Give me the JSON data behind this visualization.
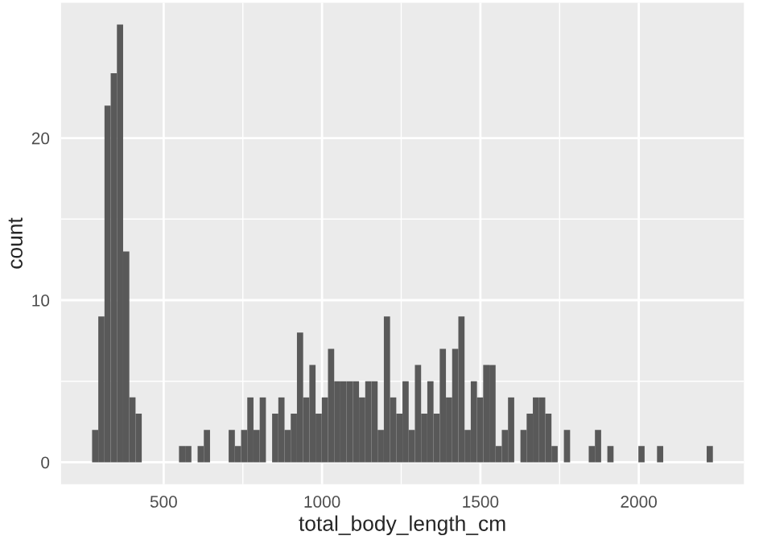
{
  "chart_data": {
    "type": "histogram",
    "xlabel": "total_body_length_cm",
    "ylabel": "count",
    "color": "#595959",
    "bins": [
      274,
      293.6,
      313.2,
      332.8,
      352.4,
      372,
      391.6,
      411.2,
      430.8,
      450.4,
      470,
      489.6,
      509.2,
      528.8,
      548.4,
      568,
      587.6,
      607.2,
      626.8,
      646.4,
      666,
      685.6,
      705.2,
      724.8,
      744.4,
      764,
      783.6,
      803.2,
      822.8,
      842.4,
      862,
      881.6,
      901.2,
      920.8,
      940.4,
      960,
      979.6,
      999.2,
      1018.8,
      1038.4,
      1058,
      1077.6,
      1097.2,
      1116.8,
      1136.4,
      1156,
      1175.6,
      1195.2,
      1214.8,
      1234.4,
      1254,
      1273.6,
      1293.2,
      1312.8,
      1332.4,
      1352,
      1371.6,
      1391.2,
      1410.8,
      1430.4,
      1450,
      1469.6,
      1489.2,
      1508.8,
      1528.4,
      1548,
      1567.6,
      1587.2,
      1606.8,
      1626.4,
      1646,
      1665.6,
      1685.2,
      1704.8,
      1724.4,
      1744,
      1763.6,
      1783.2,
      1802.8,
      1822.4,
      1842,
      1861.6,
      1881.2,
      1900.8,
      1920.4,
      1940,
      1959.6,
      1979.2,
      1998.8,
      2018.4,
      2038,
      2057.6,
      2077.2,
      2096.8,
      2116.4,
      2136,
      2155.6,
      2175.2,
      2194.8,
      2214.4,
      2234
    ],
    "values": [
      2,
      9,
      22,
      24,
      27,
      13,
      4,
      3,
      0,
      0,
      0,
      0,
      0,
      0,
      1,
      1,
      0,
      1,
      2,
      0,
      0,
      0,
      2,
      1,
      2,
      4,
      2,
      4,
      0,
      3,
      4,
      2,
      3,
      8,
      4,
      6,
      3,
      4,
      7,
      5,
      5,
      5,
      5,
      4,
      5,
      5,
      2,
      9,
      4,
      3,
      5,
      2,
      6,
      3,
      5,
      3,
      7,
      4,
      7,
      9,
      2,
      5,
      4,
      6,
      6,
      1,
      2,
      4,
      0,
      2,
      3,
      4,
      4,
      3,
      1,
      0,
      2,
      0,
      0,
      0,
      1,
      2,
      0,
      1,
      0,
      0,
      0,
      0,
      1,
      0,
      0,
      1,
      0,
      0,
      0,
      0,
      0,
      0,
      0,
      1
    ],
    "xlim": [
      176,
      2332
    ],
    "ylim": [
      -1.35,
      28.35
    ],
    "xticks": [
      500,
      1000,
      1500,
      2000
    ],
    "yticks": [
      0,
      10,
      20
    ],
    "grid": true
  }
}
